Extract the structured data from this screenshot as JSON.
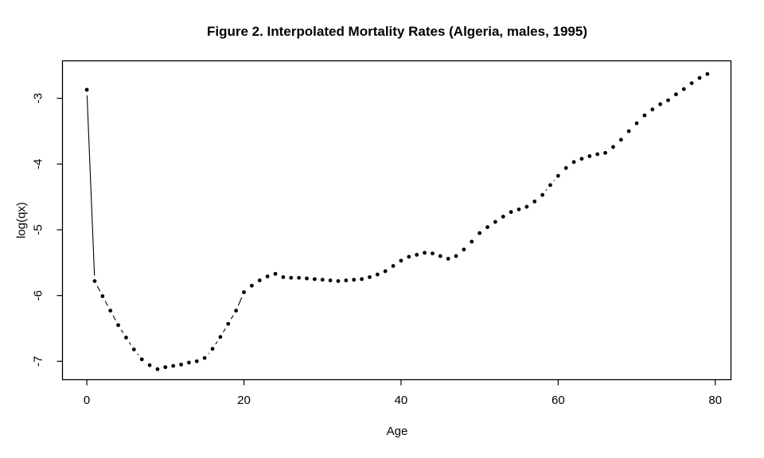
{
  "chart_data": {
    "type": "scatter",
    "plot_type": "points-with-line-segments",
    "title": "Figure 2. Interpolated Mortality Rates (Algeria, males, 1995)",
    "xlabel": "Age",
    "ylabel": "log(qx)",
    "x_ticks": [
      0,
      20,
      40,
      60,
      80
    ],
    "y_ticks": [
      -3,
      -4,
      -5,
      -6,
      -7
    ],
    "xlim": [
      -3.1,
      82.0
    ],
    "ylim": [
      -7.28,
      -2.43
    ],
    "grid": false,
    "legend": "none",
    "point_color": "#000000",
    "line_color": "#000000",
    "background": "#ffffff",
    "x": [
      0,
      1,
      2,
      3,
      4,
      5,
      6,
      7,
      8,
      9,
      10,
      11,
      12,
      13,
      14,
      15,
      16,
      17,
      18,
      19,
      20,
      21,
      22,
      23,
      24,
      25,
      26,
      27,
      28,
      29,
      30,
      31,
      32,
      33,
      34,
      35,
      36,
      37,
      38,
      39,
      40,
      41,
      42,
      43,
      44,
      45,
      46,
      47,
      48,
      49,
      50,
      51,
      52,
      53,
      54,
      55,
      56,
      57,
      58,
      59,
      60,
      61,
      62,
      63,
      64,
      65,
      66,
      67,
      68,
      69,
      70,
      71,
      72,
      73,
      74,
      75,
      76,
      77,
      78,
      79
    ],
    "y": [
      -2.87,
      -5.78,
      -6.01,
      -6.23,
      -6.45,
      -6.64,
      -6.82,
      -6.97,
      -7.06,
      -7.12,
      -7.09,
      -7.07,
      -7.05,
      -7.02,
      -7.0,
      -6.95,
      -6.81,
      -6.63,
      -6.43,
      -6.23,
      -5.95,
      -5.85,
      -5.77,
      -5.71,
      -5.67,
      -5.72,
      -5.73,
      -5.73,
      -5.74,
      -5.75,
      -5.76,
      -5.77,
      -5.78,
      -5.77,
      -5.76,
      -5.75,
      -5.72,
      -5.68,
      -5.63,
      -5.55,
      -5.47,
      -5.41,
      -5.38,
      -5.35,
      -5.36,
      -5.4,
      -5.44,
      -5.4,
      -5.3,
      -5.18,
      -5.05,
      -4.96,
      -4.88,
      -4.8,
      -4.73,
      -4.69,
      -4.65,
      -4.57,
      -4.47,
      -4.32,
      -4.18,
      -4.06,
      -3.97,
      -3.92,
      -3.88,
      -3.85,
      -3.83,
      -3.74,
      -3.63,
      -3.5,
      -3.38,
      -3.26,
      -3.17,
      -3.09,
      -3.03,
      -2.94,
      -2.86,
      -2.77,
      -2.69,
      -2.63
    ]
  }
}
